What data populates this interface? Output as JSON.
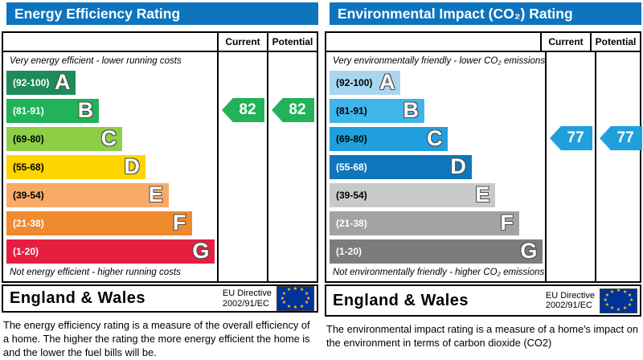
{
  "chart_data": [
    {
      "type": "bar",
      "title": "Energy Efficiency Rating",
      "categories": [
        "A (92-100)",
        "B (81-91)",
        "C (69-80)",
        "D (55-68)",
        "E (39-54)",
        "F (21-38)",
        "G (1-20)"
      ],
      "band_width_pct": [
        33,
        44,
        55,
        66,
        77,
        88,
        99
      ],
      "current": 82,
      "potential": 82,
      "current_band": "B",
      "potential_band": "B"
    },
    {
      "type": "bar",
      "title": "Environmental Impact (CO2) Rating",
      "categories": [
        "A (92-100)",
        "B (81-91)",
        "C (69-80)",
        "D (55-68)",
        "E (39-54)",
        "F (21-38)",
        "G (1-20)"
      ],
      "band_width_pct": [
        33,
        44,
        55,
        66,
        77,
        88,
        99
      ],
      "current": 77,
      "potential": 77,
      "current_band": "C",
      "potential_band": "C"
    }
  ],
  "colors": {
    "header_bg": "#0e74bd",
    "eu_flag_bg": "#003399",
    "eu_star": "#ffcc00"
  },
  "charts": [
    {
      "title": "Energy Efficiency Rating",
      "header": {
        "current": "Current",
        "potential": "Potential"
      },
      "top_caption": "Very energy efficient - lower running costs",
      "bottom_caption": "Not energy efficient - higher running costs",
      "bands": [
        {
          "letter": "A",
          "range": "(92-100)",
          "color": "#1e8c5a",
          "text_color": "#ffffff",
          "width_pct": 33
        },
        {
          "letter": "B",
          "range": "(81-91)",
          "color": "#22b25a",
          "text_color": "#ffffff",
          "width_pct": 44
        },
        {
          "letter": "C",
          "range": "(69-80)",
          "color": "#8dce46",
          "text_color": "#000000",
          "width_pct": 55
        },
        {
          "letter": "D",
          "range": "(55-68)",
          "color": "#ffd500",
          "text_color": "#000000",
          "width_pct": 66
        },
        {
          "letter": "E",
          "range": "(39-54)",
          "color": "#f8ab68",
          "text_color": "#000000",
          "width_pct": 77
        },
        {
          "letter": "F",
          "range": "(21-38)",
          "color": "#ef8a2e",
          "text_color": "#ffffff",
          "width_pct": 88
        },
        {
          "letter": "G",
          "range": "(1-20)",
          "color": "#e61e40",
          "text_color": "#ffffff",
          "width_pct": 99
        }
      ],
      "current": {
        "value": "82",
        "band_index": 1,
        "color": "#22b25a"
      },
      "potential": {
        "value": "82",
        "band_index": 1,
        "color": "#22b25a"
      },
      "footer": {
        "region": "England & Wales",
        "directive_line1": "EU Directive",
        "directive_line2": "2002/91/EC"
      },
      "description": "The energy efficiency rating is a measure of the overall efficiency of a home.  The higher the rating the more energy efficient the home is and the lower the fuel bills will be."
    },
    {
      "title": "Environmental Impact (CO₂) Rating",
      "header": {
        "current": "Current",
        "potential": "Potential"
      },
      "top_caption": "Very environmentally friendly - lower CO₂ emissions",
      "bottom_caption": "Not environmentally friendly - higher CO₂ emissions",
      "bands": [
        {
          "letter": "A",
          "range": "(92-100)",
          "color": "#a8d6f1",
          "text_color": "#000000",
          "width_pct": 33
        },
        {
          "letter": "B",
          "range": "(81-91)",
          "color": "#3fb5e9",
          "text_color": "#000000",
          "width_pct": 44
        },
        {
          "letter": "C",
          "range": "(69-80)",
          "color": "#1fa0dd",
          "text_color": "#000000",
          "width_pct": 55
        },
        {
          "letter": "D",
          "range": "(55-68)",
          "color": "#0f76bc",
          "text_color": "#ffffff",
          "width_pct": 66
        },
        {
          "letter": "E",
          "range": "(39-54)",
          "color": "#c9c9c9",
          "text_color": "#000000",
          "width_pct": 77
        },
        {
          "letter": "F",
          "range": "(21-38)",
          "color": "#a2a2a2",
          "text_color": "#ffffff",
          "width_pct": 88
        },
        {
          "letter": "G",
          "range": "(1-20)",
          "color": "#7c7c7c",
          "text_color": "#ffffff",
          "width_pct": 99
        }
      ],
      "current": {
        "value": "77",
        "band_index": 2,
        "color": "#1fa0dd"
      },
      "potential": {
        "value": "77",
        "band_index": 2,
        "color": "#1fa0dd"
      },
      "footer": {
        "region": "England & Wales",
        "directive_line1": "EU Directive",
        "directive_line2": "2002/91/EC"
      },
      "description": "The environmental impact rating is a measure of a home's impact on the environment in terms of carbon dioxide (CO2)"
    }
  ]
}
